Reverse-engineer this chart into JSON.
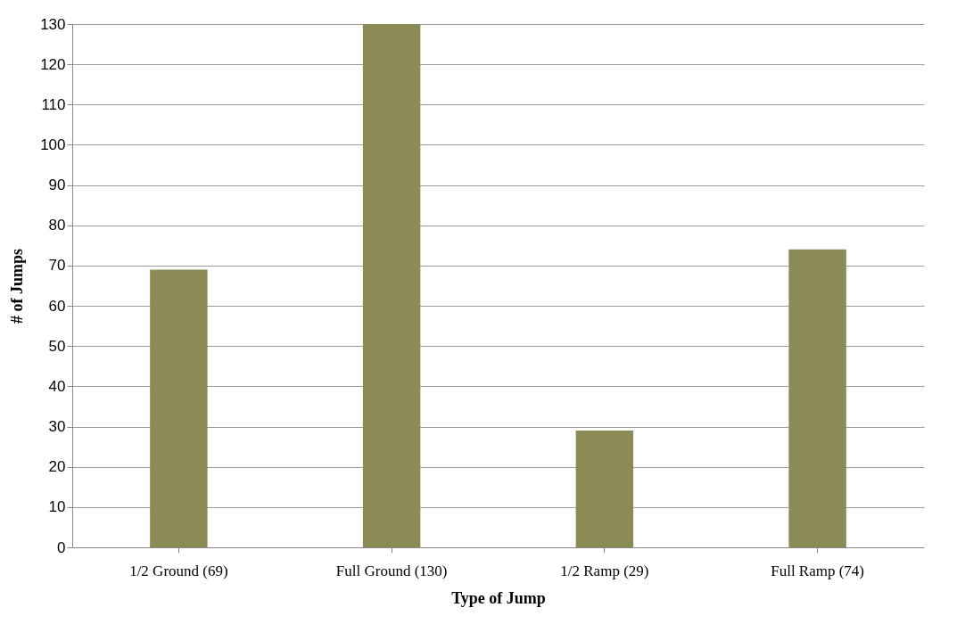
{
  "chart_data": {
    "type": "bar",
    "xlabel": "Type of Jump",
    "ylabel": "# of Jumps",
    "categories": [
      "1/2 Ground (69)",
      "Full Ground (130)",
      "1/2 Ramp (29)",
      "Full Ramp (74)"
    ],
    "values": [
      69,
      130,
      29,
      74
    ],
    "color": "#8b8b55",
    "ylim": [
      0,
      130
    ],
    "yticks": [
      0,
      10,
      20,
      30,
      40,
      50,
      60,
      70,
      80,
      90,
      100,
      110,
      120,
      130
    ],
    "grid": "y"
  }
}
